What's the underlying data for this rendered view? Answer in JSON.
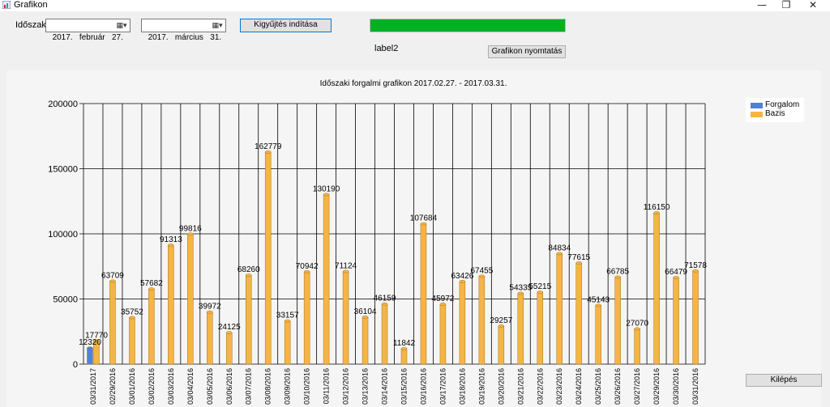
{
  "window": {
    "title": "Grafikon",
    "minimize_glyph": "—",
    "restore_glyph": "❐",
    "close_glyph": "✕"
  },
  "controls": {
    "period_label": "Időszak:",
    "date_from": "2017.   február   27.",
    "date_to": "2017.   március   31.",
    "start_button": "Kigyűjtés indítása",
    "progress_fraction": 1.0,
    "status_label": "label2",
    "print_button": "Grafikon nyomtatás",
    "exit_button": "Kilépés"
  },
  "chart_data": {
    "type": "bar",
    "title": "Időszaki forgalmi grafikon 2017.02.27. - 2017.03.31.",
    "ylim": [
      0,
      200000
    ],
    "yticks": [
      "0",
      "50000",
      "100000",
      "150000",
      "200000"
    ],
    "grid": true,
    "legend_position": "top-right",
    "categories": [
      "03/31/2017",
      "02/29/2016",
      "03/01/2016",
      "03/02/2016",
      "03/03/2016",
      "03/04/2016",
      "03/05/2016",
      "03/06/2016",
      "03/07/2016",
      "03/08/2016",
      "03/09/2016",
      "03/10/2016",
      "03/11/2016",
      "03/12/2016",
      "03/13/2016",
      "03/14/2016",
      "03/15/2016",
      "03/16/2016",
      "03/17/2016",
      "03/18/2016",
      "03/19/2016",
      "03/20/2016",
      "03/21/2016",
      "03/22/2016",
      "03/23/2016",
      "03/24/2016",
      "03/25/2016",
      "03/26/2016",
      "03/27/2016",
      "03/29/2016",
      "03/30/2016",
      "03/31/2016"
    ],
    "series": [
      {
        "name": "Forgalom",
        "color": "#4f81d9",
        "values": [
          12320,
          null,
          null,
          null,
          null,
          null,
          null,
          null,
          null,
          null,
          null,
          null,
          null,
          null,
          null,
          null,
          null,
          null,
          null,
          null,
          null,
          null,
          null,
          null,
          null,
          null,
          null,
          null,
          null,
          null,
          null,
          null
        ],
        "labels": [
          "12320",
          "",
          "",
          "",
          "",
          "",
          "",
          "",
          "",
          "",
          "",
          "",
          "",
          "",
          "",
          "",
          "",
          "",
          "",
          "",
          "",
          "",
          "",
          "",
          "",
          "",
          "",
          "",
          "",
          "",
          "",
          ""
        ]
      },
      {
        "name": "Bazis",
        "color": "#f5b545",
        "values": [
          17770,
          63709,
          35752,
          57682,
          91313,
          99816,
          39972,
          24125,
          68260,
          162779,
          33157,
          70942,
          130190,
          71124,
          36104,
          46159,
          11842,
          107684,
          45972,
          63426,
          67455,
          29257,
          54335,
          55215,
          84834,
          77615,
          45143,
          66785,
          27070,
          116150,
          66479,
          71578
        ],
        "labels": [
          "17770",
          "63709",
          "35752",
          "57682",
          "91313",
          "99816",
          "39972",
          "24125",
          "68260",
          "162779",
          "33157",
          "70942",
          "130190",
          "71124",
          "36104",
          "46159",
          "11842",
          "107684",
          "45972",
          "63426",
          "67455",
          "29257",
          "54335",
          "55215",
          "84834",
          "77615",
          "45143",
          "66785",
          "27070",
          "116150",
          "66479",
          "71578"
        ]
      }
    ]
  }
}
